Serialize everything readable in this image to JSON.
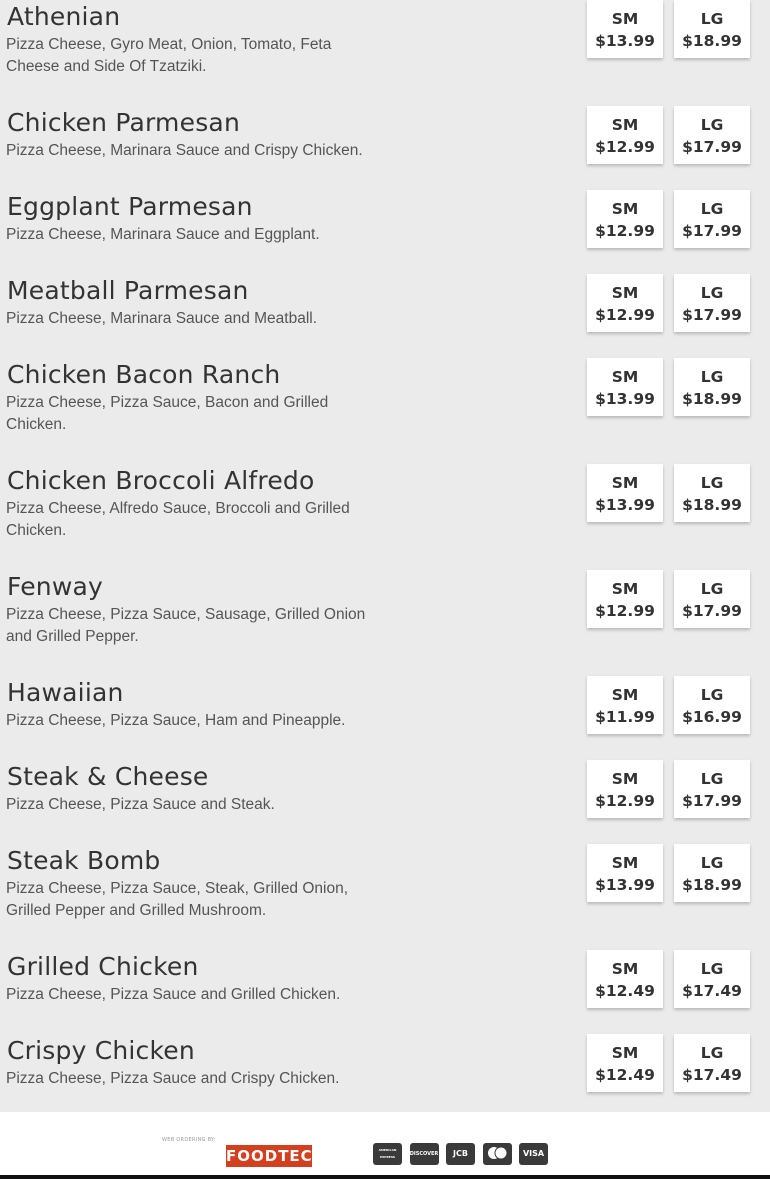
{
  "items": [
    {
      "name": "Athenian",
      "desc": "Pizza Cheese, Gyro Meat, Onion, Tomato, Feta Cheese and Side Of Tzatziki.",
      "sm": "$13.99",
      "lg": "$18.99"
    },
    {
      "name": "Chicken Parmesan",
      "desc": "Pizza Cheese, Marinara Sauce and Crispy Chicken.",
      "sm": "$12.99",
      "lg": "$17.99"
    },
    {
      "name": "Eggplant Parmesan",
      "desc": "Pizza Cheese, Marinara Sauce and Eggplant.",
      "sm": "$12.99",
      "lg": "$17.99"
    },
    {
      "name": "Meatball Parmesan",
      "desc": "Pizza Cheese, Marinara Sauce and Meatball.",
      "sm": "$12.99",
      "lg": "$17.99"
    },
    {
      "name": "Chicken Bacon Ranch",
      "desc": "Pizza Cheese, Pizza Sauce, Bacon and Grilled Chicken.",
      "sm": "$13.99",
      "lg": "$18.99"
    },
    {
      "name": "Chicken Broccoli Alfredo",
      "desc": "Pizza Cheese, Alfredo Sauce, Broccoli and Grilled Chicken.",
      "sm": "$13.99",
      "lg": "$18.99"
    },
    {
      "name": "Fenway",
      "desc": "Pizza Cheese, Pizza Sauce, Sausage, Grilled Onion and Grilled Pepper.",
      "sm": "$12.99",
      "lg": "$17.99"
    },
    {
      "name": "Hawaiian",
      "desc": "Pizza Cheese, Pizza Sauce, Ham and Pineapple.",
      "sm": "$11.99",
      "lg": "$16.99"
    },
    {
      "name": "Steak & Cheese",
      "desc": "Pizza Cheese, Pizza Sauce and Steak.",
      "sm": "$12.99",
      "lg": "$17.99"
    },
    {
      "name": "Steak Bomb",
      "desc": "Pizza Cheese, Pizza Sauce, Steak, Grilled Onion, Grilled Pepper and Grilled Mushroom.",
      "sm": "$13.99",
      "lg": "$18.99"
    },
    {
      "name": "Grilled Chicken",
      "desc": "Pizza Cheese, Pizza Sauce and Grilled Chicken.",
      "sm": "$12.49",
      "lg": "$17.49"
    },
    {
      "name": "Crispy Chicken",
      "desc": "Pizza Cheese, Pizza Sauce and Crispy Chicken.",
      "sm": "$12.49",
      "lg": "$17.49"
    }
  ],
  "size_labels": {
    "sm": "SM",
    "lg": "LG"
  },
  "footer": {
    "web_ordering": "WEB ORDERING BY:",
    "brand": "FOODTEC",
    "brand_color": "#d2401f",
    "cards": [
      {
        "icon": "amex-icon",
        "label": "AMERICAN EXPRESS"
      },
      {
        "icon": "discover-icon",
        "label": "DISCOVER"
      },
      {
        "icon": "jcb-icon",
        "label": "JCB"
      },
      {
        "icon": "mastercard-icon",
        "label": ""
      },
      {
        "icon": "visa-icon",
        "label": "VISA"
      }
    ]
  }
}
